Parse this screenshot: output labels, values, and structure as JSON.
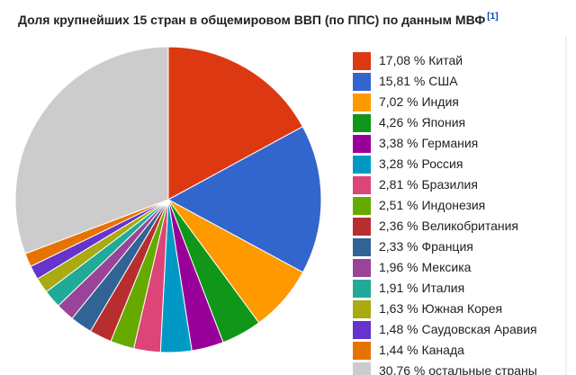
{
  "chart_data": {
    "type": "pie",
    "title": "Доля крупнейших 15 стран в общемировом ВВП (по ППС) по данным МВФ",
    "title_ref": "[1]",
    "categories": [
      "Китай",
      "США",
      "Индия",
      "Япония",
      "Германия",
      "Россия",
      "Бразилия",
      "Индонезия",
      "Великобритания",
      "Франция",
      "Мексика",
      "Италия",
      "Южная Корея",
      "Саудовская Аравия",
      "Канада",
      "остальные страны"
    ],
    "values": [
      17.08,
      15.81,
      7.02,
      4.26,
      3.38,
      3.28,
      2.81,
      2.51,
      2.36,
      2.33,
      1.96,
      1.91,
      1.63,
      1.48,
      1.44,
      30.76
    ],
    "value_labels": [
      "17,08 %",
      "15,81 %",
      "7,02 %",
      "4,26 %",
      "3,38 %",
      "3,28 %",
      "2,81 %",
      "2,51 %",
      "2,36 %",
      "2,33 %",
      "1,96 %",
      "1,91 %",
      "1,63 %",
      "1,48 %",
      "1,44 %",
      "30,76 %"
    ],
    "colors": [
      "#dc3912",
      "#3366cc",
      "#ff9900",
      "#109618",
      "#990099",
      "#0099c6",
      "#dd4477",
      "#66aa00",
      "#b82e2e",
      "#316395",
      "#994499",
      "#22aa99",
      "#aaaa11",
      "#6633cc",
      "#e67300",
      "#cccccc"
    ]
  }
}
